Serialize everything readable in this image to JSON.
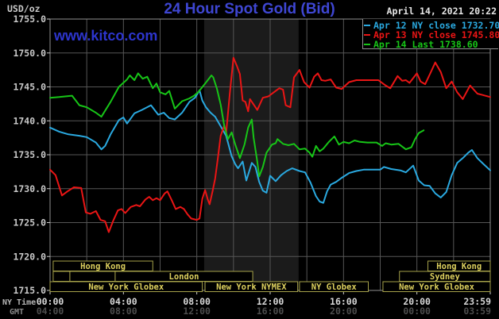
{
  "header": {
    "unit_label": "USD/oz",
    "title": "24 Hour Spot Gold (Bid)",
    "datetime": "April 14, 2021 20:22",
    "watermark": "www.kitco.com"
  },
  "legend": {
    "items": [
      {
        "label": "Apr 12 NY close 1732.70",
        "color": "#2aa9e0"
      },
      {
        "label": "Apr 13 NY close 1745.80",
        "color": "#ea1515"
      },
      {
        "label": "Apr 14 Last 1738.60",
        "color": "#17c517"
      }
    ]
  },
  "axes": {
    "ny_axis_name": "NY Time",
    "gmt_axis_name": "GMT",
    "tick_hours": [
      0,
      4,
      8,
      12,
      16,
      20,
      24
    ],
    "ny_ticks": [
      "00:00",
      "04:00",
      "08:00",
      "12:00",
      "16:00",
      "20:00",
      "23:59"
    ],
    "gmt_ticks": [
      "04:00",
      "08:00",
      "12:00",
      "16:00",
      "20:00",
      "00:00",
      "03:59"
    ],
    "y_ticks": [
      1715,
      1720,
      1725,
      1730,
      1735,
      1740,
      1745,
      1750,
      1755
    ]
  },
  "sessions": [
    {
      "row": 0,
      "from_h": 0.17,
      "to_h": 5.6,
      "label": "Hong Kong"
    },
    {
      "row": 0,
      "from_h": 20.6,
      "to_h": 24,
      "label": "Hong Kong"
    },
    {
      "row": 1,
      "from_h": 0.17,
      "to_h": 1.08,
      "label": ""
    },
    {
      "row": 1,
      "from_h": 1.08,
      "to_h": 3.55,
      "label": ""
    },
    {
      "row": 1,
      "from_h": 3.55,
      "to_h": 11.05,
      "label": "London"
    },
    {
      "row": 1,
      "from_h": 19.05,
      "to_h": 24,
      "label": "Sydney"
    },
    {
      "row": 2,
      "from_h": 0,
      "to_h": 8.3,
      "label": "New York Globex"
    },
    {
      "row": 2,
      "from_h": 8.45,
      "to_h": 13.5,
      "label": "New York NYMEX"
    },
    {
      "row": 2,
      "from_h": 13.6,
      "to_h": 17.35,
      "label": "NY Globex"
    },
    {
      "row": 2,
      "from_h": 18.15,
      "to_h": 24,
      "label": "New York Globex"
    }
  ],
  "highlight_band": {
    "from_h": 8.4,
    "to_h": 13.55,
    "color": "#1b1b1b"
  },
  "style": {
    "grid_color": "#565656",
    "border_color": "#8f8f8f",
    "session_border": "#a5a149",
    "session_text": "#ddd05e",
    "tick_text": "#c9c9c9",
    "ny_text": "#d8d8d8",
    "gmt_text": "#4d4d4d",
    "axis_name_text": "#b5b5b5"
  },
  "chart_data": {
    "type": "line",
    "title": "24 Hour Spot Gold (Bid)",
    "ylabel": "USD/oz",
    "xlabel": "NY Time (hours)",
    "xlim": [
      0,
      24
    ],
    "ylim": [
      1715,
      1755
    ],
    "grid": true,
    "legend_position": "top-right",
    "series": [
      {
        "name": "Apr 12 spot gold bid",
        "color": "#2aa9e0",
        "close": 1732.7,
        "points": [
          [
            0,
            1739.0
          ],
          [
            0.5,
            1738.4
          ],
          [
            1,
            1738.0
          ],
          [
            1.6,
            1737.8
          ],
          [
            2,
            1737.6
          ],
          [
            2.5,
            1736.8
          ],
          [
            2.8,
            1735.8
          ],
          [
            3,
            1736.3
          ],
          [
            3.3,
            1738.0
          ],
          [
            3.75,
            1740.1
          ],
          [
            4,
            1740.5
          ],
          [
            4.2,
            1739.6
          ],
          [
            4.6,
            1741.1
          ],
          [
            5,
            1741.6
          ],
          [
            5.5,
            1742.3
          ],
          [
            5.9,
            1740.9
          ],
          [
            6.2,
            1741.2
          ],
          [
            6.5,
            1740.4
          ],
          [
            6.8,
            1740.2
          ],
          [
            7.2,
            1741.2
          ],
          [
            7.6,
            1742.8
          ],
          [
            7.9,
            1743.4
          ],
          [
            8.15,
            1744.5
          ],
          [
            8.3,
            1743.0
          ],
          [
            8.5,
            1742.0
          ],
          [
            8.75,
            1741.2
          ],
          [
            9,
            1740.6
          ],
          [
            9.3,
            1739.2
          ],
          [
            9.6,
            1737.8
          ],
          [
            9.9,
            1734.8
          ],
          [
            10.1,
            1733.6
          ],
          [
            10.25,
            1733.0
          ],
          [
            10.5,
            1734.0
          ],
          [
            10.7,
            1731.2
          ],
          [
            11,
            1733.8
          ],
          [
            11.2,
            1733.2
          ],
          [
            11.4,
            1731.0
          ],
          [
            11.6,
            1729.7
          ],
          [
            11.8,
            1729.4
          ],
          [
            12,
            1731.9
          ],
          [
            12.3,
            1731.1
          ],
          [
            12.6,
            1732.0
          ],
          [
            12.9,
            1732.6
          ],
          [
            13.2,
            1733.0
          ],
          [
            13.6,
            1732.6
          ],
          [
            13.9,
            1732.4
          ],
          [
            14.2,
            1730.9
          ],
          [
            14.5,
            1728.9
          ],
          [
            14.7,
            1728.1
          ],
          [
            14.9,
            1727.9
          ],
          [
            15.1,
            1729.6
          ],
          [
            15.3,
            1730.6
          ],
          [
            15.6,
            1731.0
          ],
          [
            15.9,
            1731.6
          ],
          [
            16.3,
            1732.3
          ],
          [
            16.7,
            1732.6
          ],
          [
            17.1,
            1732.8
          ],
          [
            17.6,
            1732.8
          ],
          [
            18,
            1732.8
          ],
          [
            18.2,
            1733.2
          ],
          [
            18.6,
            1732.9
          ],
          [
            19.1,
            1732.7
          ],
          [
            19.4,
            1732.4
          ],
          [
            19.8,
            1733.4
          ],
          [
            20.1,
            1731.2
          ],
          [
            20.4,
            1730.5
          ],
          [
            20.7,
            1730.4
          ],
          [
            21,
            1729.3
          ],
          [
            21.3,
            1728.7
          ],
          [
            21.6,
            1729.5
          ],
          [
            21.9,
            1732.0
          ],
          [
            22.2,
            1733.8
          ],
          [
            22.5,
            1734.5
          ],
          [
            22.8,
            1735.3
          ],
          [
            23,
            1735.7
          ],
          [
            23.3,
            1734.5
          ],
          [
            23.6,
            1733.7
          ],
          [
            24,
            1732.7
          ]
        ]
      },
      {
        "name": "Apr 13 spot gold bid",
        "color": "#ea1515",
        "close": 1745.8,
        "points": [
          [
            0,
            1732.8
          ],
          [
            0.3,
            1732.0
          ],
          [
            0.65,
            1729.0
          ],
          [
            0.95,
            1729.6
          ],
          [
            1.3,
            1730.2
          ],
          [
            1.7,
            1730.1
          ],
          [
            1.95,
            1726.5
          ],
          [
            2.2,
            1726.3
          ],
          [
            2.5,
            1726.7
          ],
          [
            2.75,
            1725.4
          ],
          [
            3,
            1725.2
          ],
          [
            3.2,
            1723.6
          ],
          [
            3.45,
            1725.3
          ],
          [
            3.7,
            1726.8
          ],
          [
            3.9,
            1727.0
          ],
          [
            4.1,
            1726.4
          ],
          [
            4.4,
            1727.3
          ],
          [
            4.7,
            1727.6
          ],
          [
            4.9,
            1727.4
          ],
          [
            5.2,
            1728.4
          ],
          [
            5.4,
            1728.8
          ],
          [
            5.6,
            1728.3
          ],
          [
            5.8,
            1728.6
          ],
          [
            6,
            1728.3
          ],
          [
            6.25,
            1729.3
          ],
          [
            6.4,
            1729.6
          ],
          [
            6.65,
            1728.2
          ],
          [
            6.85,
            1727.0
          ],
          [
            7.1,
            1727.3
          ],
          [
            7.3,
            1727.0
          ],
          [
            7.5,
            1726.2
          ],
          [
            7.7,
            1725.6
          ],
          [
            8,
            1725.4
          ],
          [
            8.15,
            1725.6
          ],
          [
            8.3,
            1728.5
          ],
          [
            8.45,
            1729.8
          ],
          [
            8.6,
            1728.4
          ],
          [
            8.7,
            1727.7
          ],
          [
            8.85,
            1729.5
          ],
          [
            9,
            1731.5
          ],
          [
            9.15,
            1734.5
          ],
          [
            9.3,
            1737.8
          ],
          [
            9.5,
            1739.3
          ],
          [
            9.6,
            1738.2
          ],
          [
            9.8,
            1744.0
          ],
          [
            10,
            1749.3
          ],
          [
            10.2,
            1748.0
          ],
          [
            10.35,
            1746.9
          ],
          [
            10.5,
            1743.0
          ],
          [
            10.65,
            1742.8
          ],
          [
            10.8,
            1741.4
          ],
          [
            10.9,
            1743.2
          ],
          [
            11.1,
            1742.4
          ],
          [
            11.3,
            1741.6
          ],
          [
            11.6,
            1743.4
          ],
          [
            11.9,
            1743.6
          ],
          [
            12.2,
            1744.2
          ],
          [
            12.5,
            1744.8
          ],
          [
            12.7,
            1744.6
          ],
          [
            12.85,
            1742.3
          ],
          [
            13.1,
            1742.0
          ],
          [
            13.3,
            1746.4
          ],
          [
            13.6,
            1747.5
          ],
          [
            13.85,
            1745.7
          ],
          [
            14.15,
            1744.9
          ],
          [
            14.4,
            1746.5
          ],
          [
            14.6,
            1747.0
          ],
          [
            14.8,
            1746.0
          ],
          [
            15,
            1745.9
          ],
          [
            15.3,
            1746.1
          ],
          [
            15.6,
            1744.9
          ],
          [
            15.9,
            1744.7
          ],
          [
            16.3,
            1745.7
          ],
          [
            16.7,
            1746.0
          ],
          [
            17.5,
            1746.0
          ],
          [
            17.9,
            1746.0
          ],
          [
            18.3,
            1745.2
          ],
          [
            18.55,
            1744.8
          ],
          [
            18.95,
            1746.6
          ],
          [
            19.2,
            1745.9
          ],
          [
            19.4,
            1746.0
          ],
          [
            19.6,
            1745.6
          ],
          [
            20,
            1747.0
          ],
          [
            20.2,
            1745.8
          ],
          [
            20.45,
            1745.4
          ],
          [
            20.8,
            1747.4
          ],
          [
            21,
            1748.6
          ],
          [
            21.3,
            1747.2
          ],
          [
            21.6,
            1744.8
          ],
          [
            21.9,
            1745.8
          ],
          [
            22.2,
            1744.2
          ],
          [
            22.5,
            1743.2
          ],
          [
            22.9,
            1745.2
          ],
          [
            23.3,
            1744.0
          ],
          [
            23.6,
            1743.8
          ],
          [
            24,
            1743.5
          ]
        ]
      },
      {
        "name": "Apr 14 spot gold bid",
        "color": "#17c517",
        "last": 1738.6,
        "points": [
          [
            0,
            1743.4
          ],
          [
            0.5,
            1743.5
          ],
          [
            1.2,
            1743.7
          ],
          [
            1.6,
            1742.3
          ],
          [
            2,
            1742.0
          ],
          [
            2.5,
            1741.2
          ],
          [
            2.8,
            1740.6
          ],
          [
            3.3,
            1742.8
          ],
          [
            3.75,
            1745.0
          ],
          [
            4.2,
            1746.1
          ],
          [
            4.35,
            1746.7
          ],
          [
            4.6,
            1746.0
          ],
          [
            4.8,
            1747.0
          ],
          [
            5.05,
            1746.2
          ],
          [
            5.3,
            1746.5
          ],
          [
            5.6,
            1744.8
          ],
          [
            5.8,
            1745.5
          ],
          [
            6,
            1744.2
          ],
          [
            6.3,
            1743.9
          ],
          [
            6.5,
            1744.4
          ],
          [
            6.8,
            1741.8
          ],
          [
            7.2,
            1742.9
          ],
          [
            7.6,
            1743.3
          ],
          [
            7.85,
            1743.7
          ],
          [
            8.1,
            1744.3
          ],
          [
            8.4,
            1745.3
          ],
          [
            8.6,
            1746.0
          ],
          [
            8.8,
            1746.7
          ],
          [
            8.9,
            1746.4
          ],
          [
            9.1,
            1744.7
          ],
          [
            9.3,
            1742.4
          ],
          [
            9.5,
            1739.2
          ],
          [
            9.7,
            1737.3
          ],
          [
            9.9,
            1738.3
          ],
          [
            10.1,
            1736.5
          ],
          [
            10.2,
            1735.7
          ],
          [
            10.35,
            1734.5
          ],
          [
            10.6,
            1736.5
          ],
          [
            10.8,
            1739.0
          ],
          [
            11,
            1740.2
          ],
          [
            11.1,
            1737.5
          ],
          [
            11.3,
            1734.0
          ],
          [
            11.4,
            1731.8
          ],
          [
            11.6,
            1733.2
          ],
          [
            11.8,
            1735.3
          ],
          [
            12.1,
            1736.5
          ],
          [
            12.3,
            1736.7
          ],
          [
            12.4,
            1737.3
          ],
          [
            12.7,
            1736.6
          ],
          [
            13,
            1736.4
          ],
          [
            13.3,
            1736.6
          ],
          [
            13.6,
            1735.8
          ],
          [
            13.9,
            1735.9
          ],
          [
            14.15,
            1735.3
          ],
          [
            14.3,
            1734.7
          ],
          [
            14.5,
            1736.3
          ],
          [
            14.7,
            1735.5
          ],
          [
            14.9,
            1735.9
          ],
          [
            15.2,
            1736.9
          ],
          [
            15.5,
            1737.7
          ],
          [
            15.75,
            1736.5
          ],
          [
            16,
            1736.9
          ],
          [
            16.3,
            1736.7
          ],
          [
            16.6,
            1737.1
          ],
          [
            16.9,
            1736.9
          ],
          [
            17.3,
            1736.8
          ],
          [
            17.8,
            1736.8
          ],
          [
            18.1,
            1736.3
          ],
          [
            18.3,
            1736.7
          ],
          [
            18.6,
            1736.5
          ],
          [
            19,
            1736.6
          ],
          [
            19.4,
            1735.8
          ],
          [
            19.7,
            1736.1
          ],
          [
            19.9,
            1737.3
          ],
          [
            20.1,
            1738.2
          ],
          [
            20.37,
            1738.6
          ]
        ]
      }
    ]
  }
}
